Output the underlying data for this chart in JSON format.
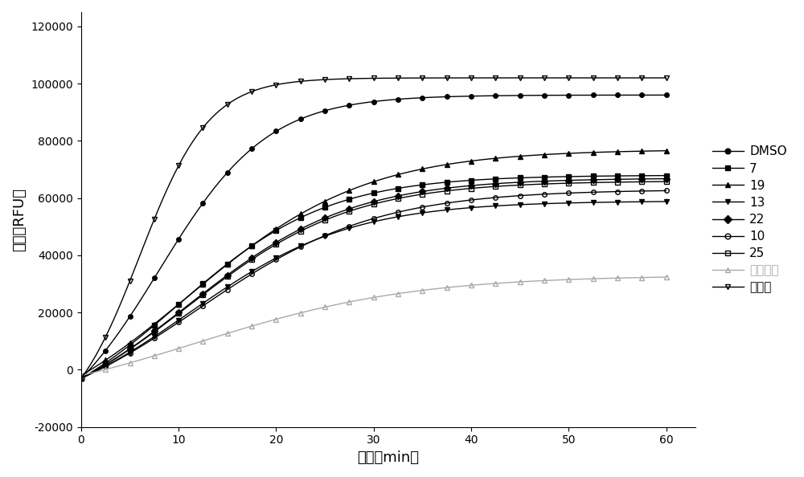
{
  "title": "",
  "xlabel": "时间（min）",
  "ylabel": "荧光（RFU）",
  "xlim": [
    0,
    63
  ],
  "ylim": [
    -20000,
    125000
  ],
  "xticks": [
    0,
    10,
    20,
    30,
    40,
    50,
    60
  ],
  "yticks": [
    -20000,
    0,
    20000,
    40000,
    60000,
    80000,
    100000,
    120000
  ],
  "series": [
    {
      "label": "DMSO",
      "marker": "o",
      "fillstyle": "full",
      "color": "#000000",
      "plateau": 96000,
      "k": 0.18,
      "t0": 8,
      "baseline": -3000
    },
    {
      "label": "7",
      "marker": "s",
      "fillstyle": "full",
      "color": "#000000",
      "plateau": 68000,
      "k": 0.13,
      "t0": 10,
      "baseline": -3000
    },
    {
      "label": "19",
      "marker": "^",
      "fillstyle": "full",
      "color": "#000000",
      "plateau": 77000,
      "k": 0.11,
      "t0": 11,
      "baseline": -2000
    },
    {
      "label": "13",
      "marker": "v",
      "fillstyle": "full",
      "color": "#000000",
      "plateau": 59000,
      "k": 0.12,
      "t0": 11,
      "baseline": -3000
    },
    {
      "label": "22",
      "marker": "D",
      "fillstyle": "full",
      "color": "#000000",
      "plateau": 67000,
      "k": 0.12,
      "t0": 11,
      "baseline": -3000
    },
    {
      "label": "10",
      "marker": "o",
      "fillstyle": "none",
      "color": "#000000",
      "plateau": 63000,
      "k": 0.11,
      "t0": 12,
      "baseline": -3000
    },
    {
      "label": "25",
      "marker": "s",
      "fillstyle": "none",
      "color": "#000000",
      "plateau": 66000,
      "k": 0.12,
      "t0": 11,
      "baseline": -3000
    },
    {
      "label": "长春新碱",
      "marker": "^",
      "fillstyle": "none",
      "color": "#aaaaaa",
      "plateau": 33000,
      "k": 0.09,
      "t0": 12,
      "baseline": -2000
    },
    {
      "label": "紫杉醇",
      "marker": "v",
      "fillstyle": "none",
      "color": "#000000",
      "plateau": 102000,
      "k": 0.28,
      "t0": 6,
      "baseline": -3000
    }
  ],
  "figsize": [
    10.0,
    5.94
  ],
  "dpi": 100,
  "background_color": "#ffffff",
  "markersize": 4,
  "linewidth": 1.0
}
